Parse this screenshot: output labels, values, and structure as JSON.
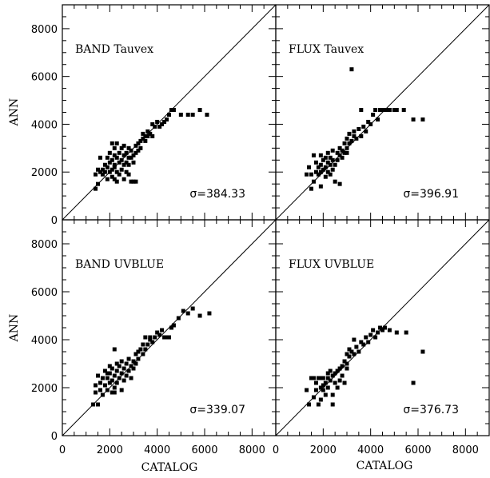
{
  "figure": {
    "ylabel": "ANN",
    "xlabel": "CATALOG"
  },
  "chart_data": [
    {
      "type": "scatter",
      "panel_label": "BAND Tauvex",
      "sigma_label": "σ=384.33",
      "xlim": [
        0,
        9000
      ],
      "ylim": [
        0,
        9000
      ],
      "xticks": [],
      "yticks": [
        0,
        2000,
        4000,
        6000,
        8000
      ],
      "reference_line": "y = x",
      "points": [
        [
          1400,
          1300
        ],
        [
          1500,
          1500
        ],
        [
          1400,
          1900
        ],
        [
          1600,
          2000
        ],
        [
          1500,
          2100
        ],
        [
          1700,
          2100
        ],
        [
          1700,
          1900
        ],
        [
          1800,
          2000
        ],
        [
          1800,
          2300
        ],
        [
          1900,
          1700
        ],
        [
          1900,
          2200
        ],
        [
          1900,
          2600
        ],
        [
          2000,
          2000
        ],
        [
          2000,
          2400
        ],
        [
          2000,
          2800
        ],
        [
          2100,
          1800
        ],
        [
          2100,
          2100
        ],
        [
          2100,
          2500
        ],
        [
          2200,
          1700
        ],
        [
          2200,
          2200
        ],
        [
          2200,
          2300
        ],
        [
          2200,
          2700
        ],
        [
          2200,
          3000
        ],
        [
          2300,
          1600
        ],
        [
          2300,
          2000
        ],
        [
          2300,
          2600
        ],
        [
          2300,
          3200
        ],
        [
          2400,
          1900
        ],
        [
          2400,
          2400
        ],
        [
          2400,
          2800
        ],
        [
          2500,
          2100
        ],
        [
          2500,
          2500
        ],
        [
          2500,
          3000
        ],
        [
          2600,
          1700
        ],
        [
          2600,
          2300
        ],
        [
          2600,
          2700
        ],
        [
          2600,
          3100
        ],
        [
          2700,
          2000
        ],
        [
          2700,
          2400
        ],
        [
          2700,
          2800
        ],
        [
          2800,
          1900
        ],
        [
          2800,
          2300
        ],
        [
          2800,
          2600
        ],
        [
          2800,
          3000
        ],
        [
          2900,
          1600
        ],
        [
          2900,
          2600
        ],
        [
          2900,
          2900
        ],
        [
          3000,
          2400
        ],
        [
          3000,
          2700
        ],
        [
          3000,
          1600
        ],
        [
          3100,
          2800
        ],
        [
          3100,
          3100
        ],
        [
          3100,
          1600
        ],
        [
          3200,
          2900
        ],
        [
          3200,
          3200
        ],
        [
          3300,
          3000
        ],
        [
          3300,
          3300
        ],
        [
          3400,
          3400
        ],
        [
          3400,
          3600
        ],
        [
          3500,
          3300
        ],
        [
          3500,
          3500
        ],
        [
          3600,
          3500
        ],
        [
          3600,
          3700
        ],
        [
          3700,
          3600
        ],
        [
          3800,
          3500
        ],
        [
          3800,
          4000
        ],
        [
          3900,
          3900
        ],
        [
          4000,
          4100
        ],
        [
          4100,
          3900
        ],
        [
          4200,
          4000
        ],
        [
          4300,
          4100
        ],
        [
          4400,
          4200
        ],
        [
          4500,
          4400
        ],
        [
          4600,
          4600
        ],
        [
          4700,
          4600
        ],
        [
          5000,
          4400
        ],
        [
          5300,
          4400
        ],
        [
          5500,
          4400
        ],
        [
          5800,
          4600
        ],
        [
          6100,
          4400
        ],
        [
          1600,
          2600
        ],
        [
          2100,
          3200
        ]
      ]
    },
    {
      "type": "scatter",
      "panel_label": "FLUX Tauvex",
      "sigma_label": "σ=396.91",
      "xlim": [
        0,
        9000
      ],
      "ylim": [
        0,
        9000
      ],
      "xticks": [],
      "yticks": [],
      "reference_line": "y = x",
      "points": [
        [
          1300,
          1900
        ],
        [
          1400,
          2200
        ],
        [
          1500,
          1300
        ],
        [
          1500,
          1900
        ],
        [
          1600,
          1600
        ],
        [
          1600,
          2700
        ],
        [
          1700,
          2000
        ],
        [
          1700,
          2400
        ],
        [
          1800,
          1900
        ],
        [
          1800,
          2200
        ],
        [
          1900,
          1400
        ],
        [
          1900,
          2000
        ],
        [
          1900,
          2300
        ],
        [
          2000,
          2100
        ],
        [
          2000,
          2500
        ],
        [
          2100,
          1800
        ],
        [
          2100,
          2200
        ],
        [
          2100,
          2600
        ],
        [
          2200,
          2000
        ],
        [
          2200,
          2400
        ],
        [
          2200,
          2800
        ],
        [
          2300,
          1900
        ],
        [
          2300,
          2300
        ],
        [
          2300,
          2600
        ],
        [
          2400,
          2100
        ],
        [
          2400,
          2500
        ],
        [
          2400,
          2900
        ],
        [
          2500,
          2300
        ],
        [
          2500,
          1600
        ],
        [
          2600,
          2500
        ],
        [
          2600,
          2800
        ],
        [
          2700,
          2700
        ],
        [
          2700,
          3000
        ],
        [
          2800,
          2600
        ],
        [
          2800,
          2900
        ],
        [
          2900,
          2800
        ],
        [
          2900,
          3200
        ],
        [
          3000,
          3000
        ],
        [
          3000,
          3400
        ],
        [
          3100,
          3200
        ],
        [
          3100,
          3600
        ],
        [
          3200,
          3300
        ],
        [
          3200,
          6300
        ],
        [
          3300,
          3500
        ],
        [
          3300,
          3700
        ],
        [
          3400,
          3400
        ],
        [
          3500,
          3800
        ],
        [
          3600,
          3500
        ],
        [
          3700,
          3900
        ],
        [
          3800,
          3700
        ],
        [
          3900,
          4100
        ],
        [
          4000,
          4000
        ],
        [
          4100,
          4400
        ],
        [
          4200,
          4600
        ],
        [
          4300,
          4200
        ],
        [
          4400,
          4600
        ],
        [
          4500,
          4600
        ],
        [
          4600,
          4600
        ],
        [
          4700,
          4600
        ],
        [
          4800,
          4600
        ],
        [
          5000,
          4600
        ],
        [
          5100,
          4600
        ],
        [
          5400,
          4600
        ],
        [
          5800,
          4200
        ],
        [
          6200,
          4200
        ],
        [
          3600,
          4600
        ],
        [
          2700,
          1500
        ],
        [
          1900,
          2700
        ],
        [
          3000,
          2800
        ]
      ]
    },
    {
      "type": "scatter",
      "panel_label": "BAND UVBLUE",
      "sigma_label": "σ=339.07",
      "xlim": [
        0,
        9000
      ],
      "ylim": [
        0,
        9000
      ],
      "xticks": [
        0,
        2000,
        4000,
        6000,
        8000
      ],
      "yticks": [
        0,
        2000,
        4000,
        6000,
        8000
      ],
      "reference_line": "y = x",
      "points": [
        [
          1300,
          1300
        ],
        [
          1400,
          1800
        ],
        [
          1400,
          2100
        ],
        [
          1500,
          1300
        ],
        [
          1500,
          2500
        ],
        [
          1600,
          1900
        ],
        [
          1600,
          2200
        ],
        [
          1700,
          1700
        ],
        [
          1700,
          2400
        ],
        [
          1800,
          2100
        ],
        [
          1800,
          2700
        ],
        [
          1900,
          1900
        ],
        [
          1900,
          2400
        ],
        [
          2000,
          2200
        ],
        [
          2000,
          2600
        ],
        [
          2000,
          2900
        ],
        [
          2100,
          1800
        ],
        [
          2100,
          2300
        ],
        [
          2100,
          2800
        ],
        [
          2200,
          2000
        ],
        [
          2200,
          2500
        ],
        [
          2200,
          3600
        ],
        [
          2300,
          2200
        ],
        [
          2300,
          2700
        ],
        [
          2300,
          3000
        ],
        [
          2400,
          2400
        ],
        [
          2400,
          2900
        ],
        [
          2500,
          1900
        ],
        [
          2500,
          2600
        ],
        [
          2500,
          3100
        ],
        [
          2600,
          2300
        ],
        [
          2600,
          2800
        ],
        [
          2700,
          2500
        ],
        [
          2700,
          3000
        ],
        [
          2800,
          2700
        ],
        [
          2800,
          3200
        ],
        [
          2900,
          2400
        ],
        [
          2900,
          2900
        ],
        [
          3000,
          2800
        ],
        [
          3000,
          3100
        ],
        [
          3100,
          3000
        ],
        [
          3100,
          3400
        ],
        [
          3200,
          3200
        ],
        [
          3200,
          3500
        ],
        [
          3300,
          3600
        ],
        [
          3400,
          3400
        ],
        [
          3400,
          3800
        ],
        [
          3500,
          3600
        ],
        [
          3500,
          4100
        ],
        [
          3600,
          3800
        ],
        [
          3700,
          4000
        ],
        [
          3700,
          4100
        ],
        [
          3800,
          3900
        ],
        [
          3900,
          4100
        ],
        [
          4000,
          4300
        ],
        [
          4100,
          4200
        ],
        [
          4200,
          4400
        ],
        [
          4300,
          4100
        ],
        [
          4400,
          4100
        ],
        [
          4500,
          4100
        ],
        [
          4600,
          4500
        ],
        [
          4700,
          4600
        ],
        [
          4900,
          4900
        ],
        [
          5100,
          5200
        ],
        [
          5300,
          5100
        ],
        [
          5500,
          5300
        ],
        [
          5800,
          5000
        ],
        [
          6200,
          5100
        ],
        [
          1900,
          2600
        ],
        [
          2200,
          1800
        ]
      ]
    },
    {
      "type": "scatter",
      "panel_label": "FLUX UVBLUE",
      "sigma_label": "σ=376.73",
      "xlim": [
        0,
        9000
      ],
      "ylim": [
        0,
        9000
      ],
      "xticks": [
        0,
        2000,
        4000,
        6000,
        8000
      ],
      "yticks": [],
      "reference_line": "y = x",
      "points": [
        [
          1300,
          1900
        ],
        [
          1400,
          1300
        ],
        [
          1500,
          2400
        ],
        [
          1600,
          1600
        ],
        [
          1600,
          2400
        ],
        [
          1700,
          1900
        ],
        [
          1700,
          2200
        ],
        [
          1800,
          2400
        ],
        [
          1800,
          1300
        ],
        [
          1900,
          2000
        ],
        [
          1900,
          2400
        ],
        [
          1900,
          1500
        ],
        [
          2000,
          2100
        ],
        [
          2000,
          2400
        ],
        [
          2000,
          1900
        ],
        [
          2100,
          2200
        ],
        [
          2100,
          1700
        ],
        [
          2200,
          2400
        ],
        [
          2200,
          2000
        ],
        [
          2200,
          2600
        ],
        [
          2300,
          2300
        ],
        [
          2300,
          2700
        ],
        [
          2400,
          2500
        ],
        [
          2400,
          1700
        ],
        [
          2500,
          2600
        ],
        [
          2500,
          2200
        ],
        [
          2600,
          2700
        ],
        [
          2600,
          2000
        ],
        [
          2700,
          2800
        ],
        [
          2700,
          2300
        ],
        [
          2800,
          2900
        ],
        [
          2800,
          2500
        ],
        [
          2900,
          3100
        ],
        [
          2900,
          2200
        ],
        [
          3000,
          3000
        ],
        [
          3000,
          3400
        ],
        [
          3100,
          3300
        ],
        [
          3100,
          3600
        ],
        [
          3200,
          3500
        ],
        [
          3300,
          3400
        ],
        [
          3400,
          3700
        ],
        [
          3500,
          3500
        ],
        [
          3600,
          3900
        ],
        [
          3700,
          3800
        ],
        [
          3800,
          4100
        ],
        [
          3900,
          3900
        ],
        [
          4000,
          4200
        ],
        [
          4100,
          4400
        ],
        [
          4200,
          4100
        ],
        [
          4300,
          4300
        ],
        [
          4400,
          4500
        ],
        [
          4500,
          4400
        ],
        [
          4600,
          4500
        ],
        [
          4800,
          4400
        ],
        [
          5100,
          4300
        ],
        [
          5500,
          4300
        ],
        [
          5800,
          2200
        ],
        [
          6200,
          3500
        ],
        [
          3300,
          4000
        ],
        [
          3000,
          2800
        ],
        [
          2400,
          1300
        ]
      ]
    }
  ]
}
